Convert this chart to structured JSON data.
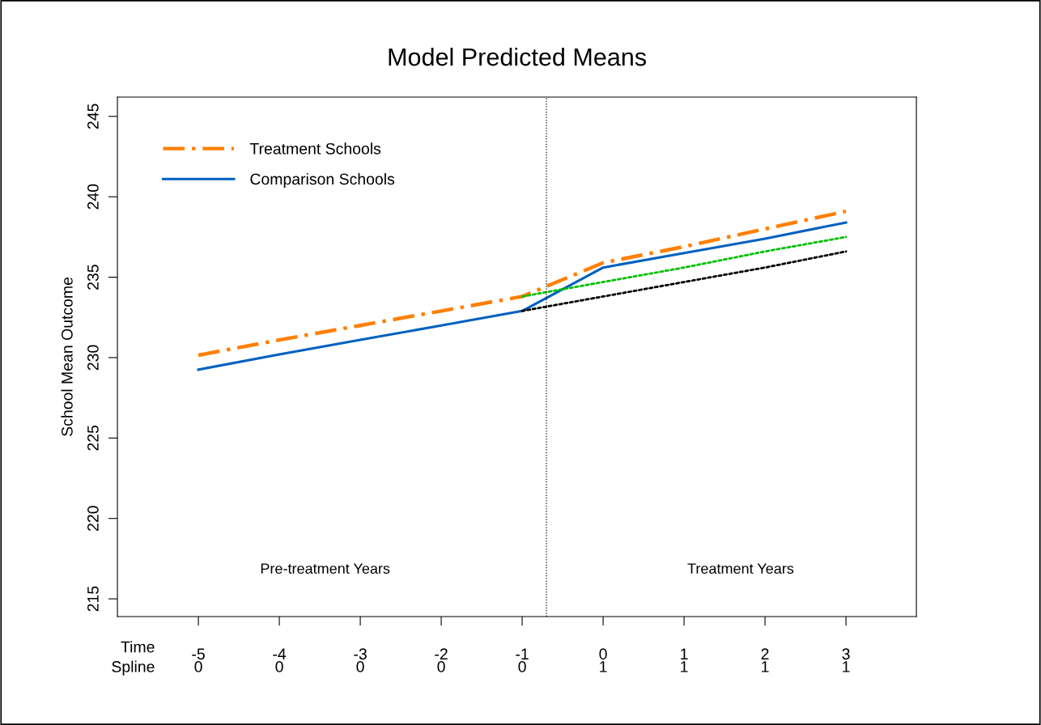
{
  "chart_data": {
    "type": "line",
    "title": "Model Predicted Means",
    "ylabel": "School Mean Outcome",
    "xlabel": "Time",
    "series": [
      {
        "name": "Treatment Schools",
        "color": "#ff7f00",
        "line_style": "dashdot",
        "x": [
          -5,
          -4,
          -3,
          -2,
          -1,
          0,
          1,
          2,
          3
        ],
        "values": [
          230.15,
          231.1,
          232.0,
          232.9,
          233.8,
          235.9,
          236.9,
          238.0,
          239.1
        ]
      },
      {
        "name": "Comparison Schools",
        "color": "#0060c0",
        "line_style": "solid",
        "x": [
          -5,
          -4,
          -3,
          -2,
          -1,
          0,
          1,
          2,
          3
        ],
        "values": [
          229.25,
          230.2,
          231.1,
          232.0,
          232.9,
          235.6,
          236.5,
          237.4,
          238.4
        ]
      },
      {
        "color": "#00c000",
        "line_style": "dotted",
        "x": [
          -1,
          0,
          1,
          2,
          3
        ],
        "values": [
          233.8,
          234.7,
          235.6,
          236.6,
          237.5
        ]
      },
      {
        "color": "#000000",
        "line_style": "dotted",
        "x": [
          -1,
          0,
          1,
          2,
          3
        ],
        "values": [
          232.9,
          233.8,
          234.7,
          235.6,
          236.6
        ]
      }
    ],
    "xlim": [
      -6,
      3.87
    ],
    "ylim": [
      213.9,
      246.2
    ],
    "xticks": [
      -5,
      -4,
      -3,
      -2,
      -1,
      0,
      1,
      2,
      3
    ],
    "yticks": [
      215,
      220,
      225,
      230,
      235,
      240,
      245
    ],
    "ref_lines": [
      {
        "axis": "x",
        "value": -0.7,
        "color": "#000000",
        "line_style": "dotted"
      }
    ],
    "annotations": [
      "Pre-treatment Years",
      "Treatment Years",
      "Spline",
      "0",
      "0",
      "0",
      "0",
      "0",
      "1",
      "1",
      "1",
      "1"
    ],
    "grid": false,
    "legend": "top left",
    "marker": "none"
  }
}
